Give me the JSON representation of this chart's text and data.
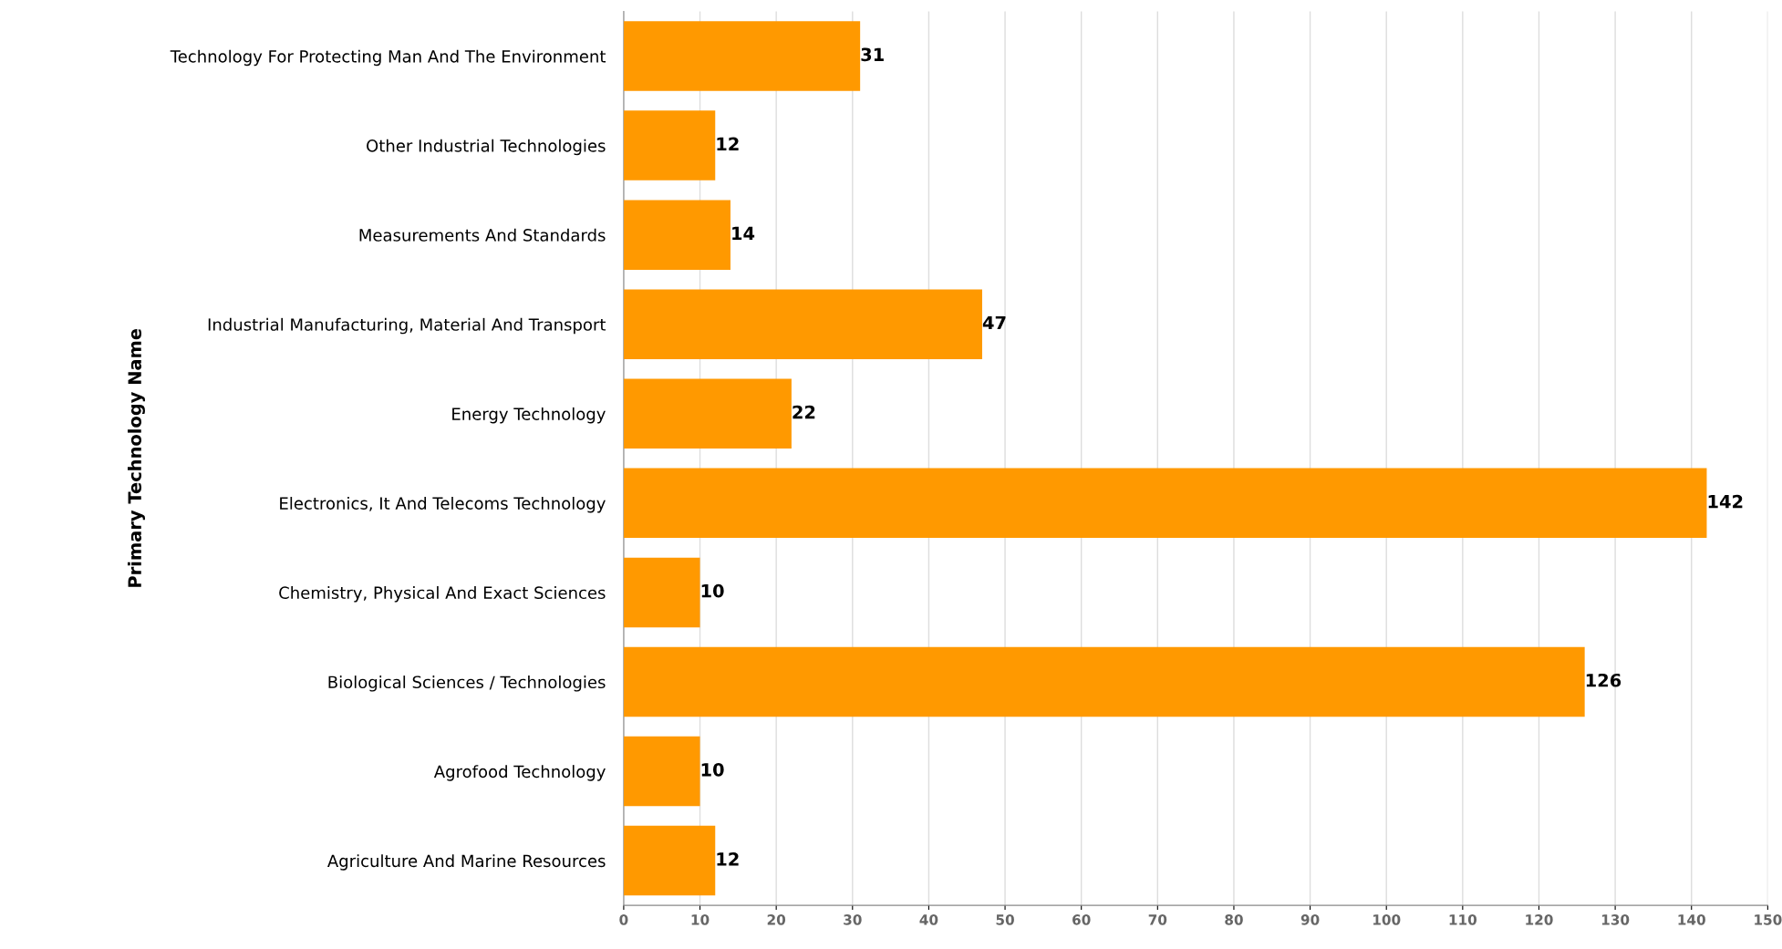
{
  "chart_data": {
    "type": "bar",
    "orientation": "horizontal",
    "ylabel": "Primary Technology Name",
    "categories": [
      "Technology For Protecting Man And The Environment",
      "Other Industrial Technologies",
      "Measurements And Standards",
      "Industrial Manufacturing, Material And Transport",
      "Energy Technology",
      "Electronics, It And Telecoms Technology",
      "Chemistry, Physical And Exact Sciences",
      "Biological Sciences / Technologies",
      "Agrofood Technology",
      "Agriculture And Marine Resources"
    ],
    "values": [
      31,
      12,
      14,
      47,
      22,
      142,
      10,
      126,
      10,
      12
    ],
    "color": "#ff9900",
    "xlim": [
      0,
      150
    ],
    "xticks": [
      0,
      10,
      20,
      30,
      40,
      50,
      60,
      70,
      80,
      90,
      100,
      110,
      120,
      130,
      140,
      150
    ],
    "grid": "x",
    "data_labels": true
  }
}
